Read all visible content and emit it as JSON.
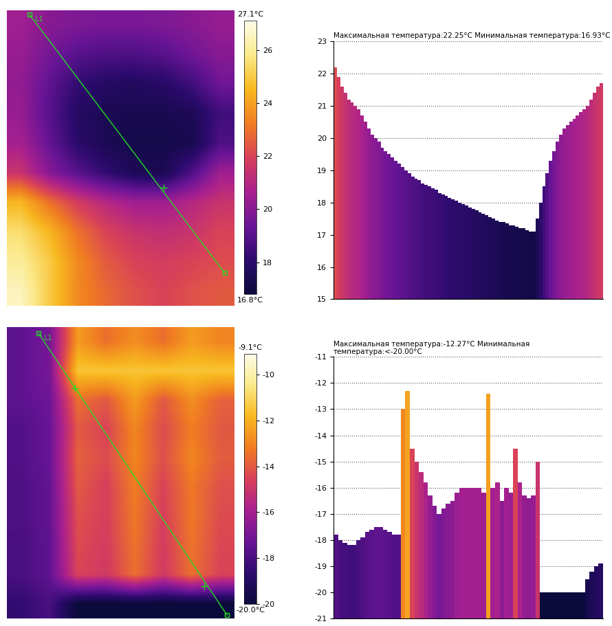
{
  "chart_data": [
    {
      "type": "heatmap",
      "cells": [
        [
          20.5,
          20.0,
          19.8,
          19.7,
          19.7,
          19.8,
          20.0,
          20.3
        ],
        [
          20.3,
          19.6,
          19.0,
          18.8,
          18.8,
          19.0,
          19.5,
          20.0
        ],
        [
          20.2,
          19.2,
          18.2,
          17.8,
          17.7,
          17.9,
          18.5,
          19.5
        ],
        [
          20.3,
          19.0,
          17.8,
          17.4,
          17.3,
          17.3,
          17.5,
          18.5
        ],
        [
          20.6,
          19.3,
          18.0,
          17.4,
          17.2,
          17.2,
          17.3,
          18.8
        ],
        [
          21.5,
          20.0,
          19.0,
          18.2,
          17.5,
          17.4,
          18.8,
          20.5
        ],
        [
          24.5,
          23.0,
          21.8,
          21.0,
          20.5,
          20.5,
          21.0,
          21.5
        ],
        [
          25.5,
          24.5,
          23.0,
          22.0,
          21.5,
          21.3,
          21.5,
          22.0
        ],
        [
          26.0,
          25.0,
          23.5,
          22.5,
          22.0,
          21.8,
          22.0,
          22.2
        ],
        [
          26.5,
          25.0,
          23.5,
          22.8,
          22.3,
          22.0,
          22.3,
          22.5
        ]
      ],
      "colorbar_range": [
        16.8,
        27.1
      ],
      "colorbar_ticks": [
        18,
        20,
        22,
        24,
        26
      ],
      "colorbar_max_label": "27.1°C",
      "colorbar_min_label": "16.8°C",
      "annotations": [
        "L1"
      ],
      "tick_labels": false
    },
    {
      "type": "bar",
      "title": "Максимальная температура:22.25°C Минимальная температура:16.93°C",
      "values": [
        22.2,
        21.9,
        21.6,
        21.4,
        21.2,
        21.1,
        21.0,
        20.9,
        20.7,
        20.5,
        20.3,
        20.1,
        20.0,
        19.9,
        19.7,
        19.6,
        19.5,
        19.4,
        19.3,
        19.2,
        19.1,
        19.0,
        18.9,
        18.8,
        18.75,
        18.7,
        18.6,
        18.55,
        18.5,
        18.45,
        18.4,
        18.3,
        18.25,
        18.2,
        18.15,
        18.1,
        18.05,
        18.0,
        17.95,
        17.9,
        17.85,
        17.8,
        17.75,
        17.7,
        17.65,
        17.6,
        17.55,
        17.5,
        17.45,
        17.4,
        17.4,
        17.35,
        17.3,
        17.3,
        17.25,
        17.2,
        17.2,
        17.15,
        17.1,
        17.1,
        17.5,
        18.0,
        18.5,
        18.9,
        19.3,
        19.6,
        19.9,
        20.1,
        20.3,
        20.4,
        20.5,
        20.6,
        20.7,
        20.8,
        20.9,
        21.0,
        21.2,
        21.4,
        21.6,
        21.7
      ],
      "ylim": [
        15,
        23
      ],
      "yticks": [
        15,
        16,
        17,
        18,
        19,
        20,
        21,
        22,
        23
      ],
      "grid": true,
      "tick_labels": "y"
    },
    {
      "type": "heatmap",
      "cells": [
        [
          -17.5,
          -17.0,
          -12.5,
          -13.5,
          -12.8,
          -13.5,
          -12.5,
          -13.0
        ],
        [
          -17.5,
          -17.0,
          -11.5,
          -11.5,
          -11.5,
          -11.5,
          -11.5,
          -11.5
        ],
        [
          -17.5,
          -17.2,
          -13.5,
          -14.0,
          -12.5,
          -14.0,
          -12.8,
          -13.8
        ],
        [
          -17.8,
          -17.3,
          -14.0,
          -14.5,
          -13.0,
          -14.3,
          -13.2,
          -14.0
        ],
        [
          -17.8,
          -17.3,
          -13.8,
          -14.3,
          -13.0,
          -14.2,
          -13.0,
          -13.9
        ],
        [
          -17.9,
          -17.4,
          -14.0,
          -14.6,
          -13.2,
          -14.5,
          -13.3,
          -14.2
        ],
        [
          -17.9,
          -17.4,
          -14.2,
          -14.6,
          -13.3,
          -14.6,
          -13.3,
          -14.3
        ],
        [
          -18.0,
          -17.5,
          -14.3,
          -14.7,
          -13.4,
          -14.7,
          -13.4,
          -14.4
        ],
        [
          -18.0,
          -17.5,
          -14.5,
          -14.8,
          -13.5,
          -14.8,
          -13.5,
          -14.5
        ],
        [
          -18.5,
          -18.0,
          -20.0,
          -20.0,
          -20.0,
          -20.0,
          -20.0,
          -20.0
        ]
      ],
      "colorbar_range": [
        -20.0,
        -9.1
      ],
      "colorbar_ticks": [
        -10,
        -12,
        -14,
        -16,
        -18,
        -20
      ],
      "colorbar_max_label": "-9.1°C",
      "colorbar_min_label": "-20.0°C",
      "annotations": [
        "L1"
      ],
      "tick_labels": false
    },
    {
      "type": "bar",
      "title": "Максимальная температура:-12.27°C Минимальная температура:<-20.00°C",
      "values": [
        -17.8,
        -18.0,
        -18.1,
        -18.2,
        -18.2,
        -18.0,
        -17.9,
        -17.7,
        -17.6,
        -17.5,
        -17.5,
        -17.6,
        -17.7,
        -17.8,
        -17.8,
        -13.0,
        -12.3,
        -14.5,
        -15.0,
        -15.4,
        -15.8,
        -16.3,
        -16.7,
        -17.0,
        -16.8,
        -16.6,
        -16.5,
        -16.2,
        -16.0,
        -16.0,
        -16.0,
        -16.0,
        -16.0,
        -16.2,
        -12.4,
        -16.0,
        -15.8,
        -16.5,
        -16.0,
        -16.2,
        -14.5,
        -15.8,
        -16.3,
        -16.4,
        -16.3,
        -15.0,
        -20.0,
        -20.0,
        -20.0,
        -20.0,
        -20.0,
        -20.0,
        -20.0,
        -20.0,
        -20.0,
        -20.0,
        -19.5,
        -19.2,
        -19.0,
        -18.9
      ],
      "ylim": [
        -21,
        -11
      ],
      "yticks": [
        -11,
        -12,
        -13,
        -14,
        -15,
        -16,
        -17,
        -18,
        -19,
        -20,
        -21
      ],
      "grid": true,
      "tick_labels": "y"
    }
  ]
}
